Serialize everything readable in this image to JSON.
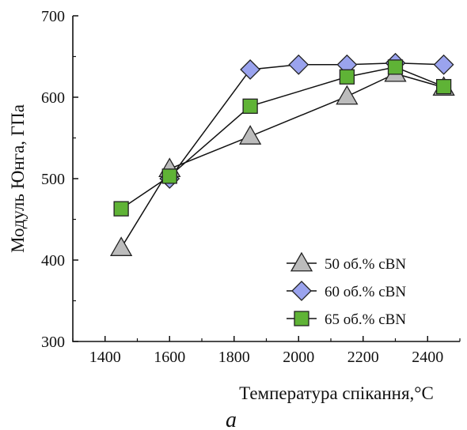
{
  "chart_data": {
    "type": "line",
    "xlabel": "Температура спікання,°C",
    "ylabel": "Модуль Юнга, ГПа",
    "caption": "a",
    "xlim": [
      1300,
      2500
    ],
    "ylim": [
      300,
      700
    ],
    "xticks": [
      1400,
      1600,
      1800,
      2000,
      2200,
      2400
    ],
    "yticks": [
      300,
      400,
      500,
      600,
      700
    ],
    "grid": false,
    "legend_position": "bottom-right",
    "series": [
      {
        "name": "50 об.% cBN",
        "marker": "triangle",
        "color": "#bcbcbc",
        "x": [
          1450,
          1600,
          1850,
          2150,
          2300,
          2450
        ],
        "y": [
          415,
          512,
          552,
          601,
          629,
          612
        ]
      },
      {
        "name": "60 об.% cBN",
        "marker": "diamond",
        "color": "#9aa3ee",
        "x": [
          1600,
          1850,
          2000,
          2150,
          2300,
          2450
        ],
        "y": [
          500,
          634,
          640,
          640,
          642,
          640
        ]
      },
      {
        "name": "65 об.% cBN",
        "marker": "square",
        "color": "#5fb336",
        "x": [
          1450,
          1600,
          1850,
          2150,
          2300,
          2450
        ],
        "y": [
          463,
          503,
          589,
          625,
          637,
          613
        ]
      }
    ]
  }
}
